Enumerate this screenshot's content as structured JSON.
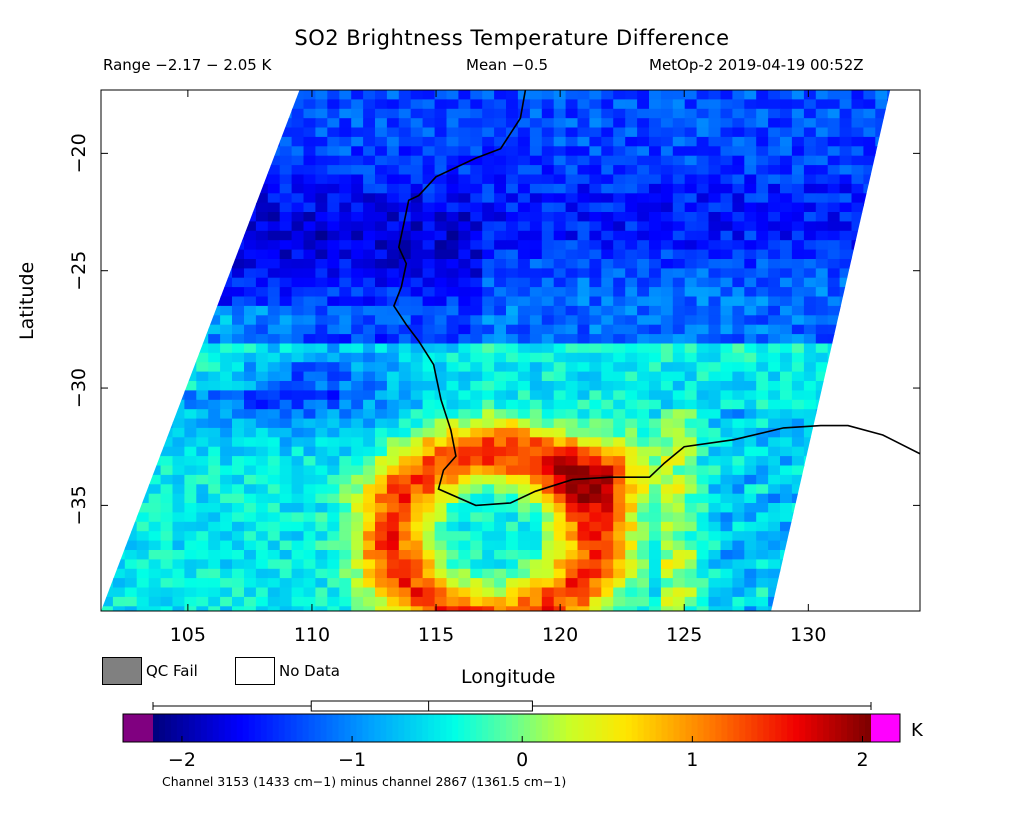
{
  "header": {
    "title": "SO2 Brightness Temperature Difference",
    "range_text": "Range −2.17 − 2.05 K",
    "mean_text": "Mean −0.5",
    "satellite_text": "MetOp-2 2019-04-19 00:52Z"
  },
  "axes": {
    "xlabel": "Longitude",
    "ylabel": "Latitude",
    "x_ticks": [
      "105",
      "110",
      "115",
      "120",
      "125",
      "130"
    ],
    "y_ticks": [
      "−20",
      "−25",
      "−30",
      "−35"
    ],
    "x_tick_values": [
      105,
      110,
      115,
      120,
      125,
      130
    ],
    "y_tick_values": [
      -20,
      -25,
      -30,
      -35
    ],
    "xlim": [
      101.5,
      134.5
    ],
    "ylim": [
      -39.5,
      -17.3
    ]
  },
  "legend": {
    "qc_fail_label": "QC Fail",
    "no_data_label": "No Data",
    "qc_fail_color": "#808080",
    "no_data_color": "#ffffff"
  },
  "colorbar": {
    "units": "K",
    "ticks": [
      "−2",
      "−1",
      "0",
      "1",
      "2"
    ],
    "tick_values": [
      -2,
      -1,
      0,
      1,
      2
    ],
    "vmin": -2.17,
    "vmax": 2.05,
    "under_color": "#800080",
    "over_color": "#ff00ff",
    "boxplot": {
      "min": -2.17,
      "q1": -1.24,
      "median": -0.55,
      "q3": 0.06,
      "max": 2.05
    }
  },
  "swath": {
    "left_edge": [
      [
        109.5,
        -17.3
      ],
      [
        101.5,
        -39.5
      ]
    ],
    "right_edge": [
      [
        133.3,
        -17.3
      ],
      [
        128.5,
        -39.5
      ]
    ]
  },
  "coastline": [
    [
      118.6,
      -17.3
    ],
    [
      118.4,
      -18.5
    ],
    [
      117.6,
      -19.8
    ],
    [
      116.6,
      -20.2
    ],
    [
      115.0,
      -21.0
    ],
    [
      114.3,
      -21.8
    ],
    [
      113.9,
      -22.0
    ],
    [
      113.7,
      -23.0
    ],
    [
      113.5,
      -24.0
    ],
    [
      113.8,
      -24.7
    ],
    [
      113.6,
      -25.7
    ],
    [
      113.3,
      -26.5
    ],
    [
      113.8,
      -27.3
    ],
    [
      114.3,
      -28.0
    ],
    [
      114.9,
      -29.0
    ],
    [
      115.2,
      -30.5
    ],
    [
      115.6,
      -31.8
    ],
    [
      115.8,
      -32.9
    ],
    [
      115.3,
      -33.5
    ],
    [
      115.1,
      -34.3
    ],
    [
      116.6,
      -35.0
    ],
    [
      118.0,
      -34.9
    ],
    [
      119.0,
      -34.4
    ],
    [
      120.5,
      -33.9
    ],
    [
      122.0,
      -33.8
    ],
    [
      123.6,
      -33.8
    ],
    [
      124.2,
      -33.2
    ],
    [
      125.0,
      -32.5
    ],
    [
      127.0,
      -32.2
    ],
    [
      129.0,
      -31.7
    ],
    [
      130.5,
      -31.6
    ],
    [
      131.6,
      -31.6
    ],
    [
      133.0,
      -32.0
    ],
    [
      134.5,
      -32.8
    ]
  ],
  "field_description_regions": {
    "notes": "color field rendered procedurally"
  },
  "footnote": "Channel 3153 (1433 cm−1) minus channel 2867 (1361.5 cm−1)"
}
